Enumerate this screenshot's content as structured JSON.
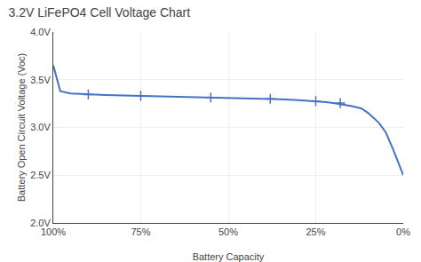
{
  "chart_data": {
    "type": "line",
    "title": "3.2V LiFePO4 Cell Voltage Chart",
    "xlabel": "Battery Capacity",
    "ylabel": "Battery Open Circuit Voltage (Voc)",
    "series": [
      {
        "type": "line",
        "color": "#4472c4",
        "line_style": "solid",
        "x": [
          100,
          98,
          95,
          90,
          85,
          80,
          75,
          70,
          65,
          60,
          55,
          50,
          45,
          40,
          35,
          30,
          25,
          22,
          20,
          17,
          15,
          12,
          10,
          7,
          5,
          3,
          1,
          0
        ],
        "values": [
          3.65,
          3.38,
          3.355,
          3.345,
          3.34,
          3.336,
          3.332,
          3.328,
          3.322,
          3.318,
          3.314,
          3.31,
          3.305,
          3.3,
          3.295,
          3.285,
          3.275,
          3.265,
          3.255,
          3.24,
          3.225,
          3.2,
          3.15,
          3.05,
          2.95,
          2.78,
          2.58,
          2.5
        ]
      },
      {
        "type": "scatter",
        "color": "#4472c4",
        "marker": "plus",
        "x": [
          90,
          75,
          55,
          38,
          25,
          18
        ],
        "values": [
          3.345,
          3.332,
          3.314,
          3.3,
          3.275,
          3.255
        ]
      }
    ],
    "xlim": [
      100,
      0
    ],
    "xticks": [
      {
        "value": 100,
        "label": "100%"
      },
      {
        "value": 75,
        "label": "75%"
      },
      {
        "value": 50,
        "label": "50%"
      },
      {
        "value": 25,
        "label": "25%"
      },
      {
        "value": 0,
        "label": "0%"
      }
    ],
    "ylim": [
      2.0,
      4.0
    ],
    "yticks": [
      {
        "value": 2.0,
        "label": "2.0V"
      },
      {
        "value": 2.5,
        "label": "2.5V"
      },
      {
        "value": 3.0,
        "label": "3.0V"
      },
      {
        "value": 3.5,
        "label": "3.5V"
      },
      {
        "value": 4.0,
        "label": "4.0V"
      }
    ],
    "grid": true
  }
}
